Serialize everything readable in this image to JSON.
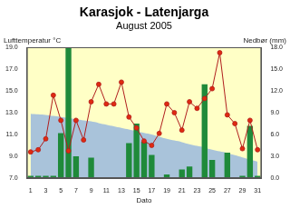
{
  "chart_data": {
    "type": "bar",
    "title": "Karasjok - Latenjarga",
    "subtitle": "August 2005",
    "x_label": "Dato",
    "y_label": "Lufttemperatur °C",
    "y2_label": "Nedbør (mm)",
    "categories": [
      "1",
      null,
      "3",
      null,
      "5",
      null,
      "7",
      null,
      "9",
      null,
      "11",
      null,
      "13",
      null,
      "15",
      null,
      "17",
      null,
      "19",
      null,
      "21",
      null,
      "23",
      null,
      "25",
      null,
      "27",
      null,
      "29",
      null,
      "31"
    ],
    "series": [
      {
        "type": "area",
        "color": "#a9c3da",
        "values": [
          12.9,
          12.85,
          12.8,
          12.7,
          12.6,
          12.5,
          12.4,
          12.3,
          12.2,
          12.05,
          11.9,
          11.75,
          11.6,
          11.45,
          11.3,
          11.15,
          11.0,
          10.8,
          10.6,
          10.45,
          10.3,
          10.1,
          9.95,
          9.8,
          9.6,
          9.45,
          9.3,
          9.1,
          8.9,
          8.7,
          8.5
        ]
      },
      {
        "type": "bar",
        "color": "#1f8a3a",
        "axis": "y2",
        "values": [
          0.3,
          0.3,
          0.3,
          0.3,
          6.2,
          18.0,
          3.0,
          0,
          2.8,
          0,
          0,
          0,
          0,
          4.8,
          7.5,
          5.0,
          3.2,
          0,
          0.5,
          0,
          1.2,
          1.6,
          0,
          12.9,
          2.5,
          0,
          3.5,
          0,
          0.3,
          7.2,
          0.3
        ]
      },
      {
        "type": "line",
        "color": "#b01e1e",
        "marker": "circle",
        "values": [
          9.4,
          9.6,
          10.6,
          14.6,
          12.3,
          9.5,
          12.3,
          10.5,
          14.0,
          15.6,
          13.8,
          13.8,
          15.8,
          12.6,
          11.6,
          10.4,
          10.0,
          11.1,
          13.8,
          13.0,
          11.4,
          14.0,
          13.4,
          14.3,
          15.2,
          18.5,
          12.8,
          12.0,
          9.7,
          12.3,
          9.6
        ]
      }
    ],
    "ylim": [
      7,
      19
    ],
    "yticks": [
      {
        "value": 7,
        "label": "7.0"
      },
      {
        "value": 9,
        "label": "9.0"
      },
      {
        "value": 11,
        "label": "11.0"
      },
      {
        "value": 13,
        "label": "13.0"
      },
      {
        "value": 15,
        "label": "15.0"
      },
      {
        "value": 17,
        "label": "17.0"
      },
      {
        "value": 19,
        "label": "19.0"
      }
    ],
    "y2lim": [
      0,
      18
    ],
    "y2ticks": [
      {
        "value": 0,
        "label": "0.0"
      },
      {
        "value": 3,
        "label": "3.0"
      },
      {
        "value": 6,
        "label": "6.0"
      },
      {
        "value": 9,
        "label": "9.0"
      },
      {
        "value": 12,
        "label": "12.0"
      },
      {
        "value": 15,
        "label": "15.0"
      },
      {
        "value": 18,
        "label": "18.0"
      }
    ],
    "grid": false
  }
}
